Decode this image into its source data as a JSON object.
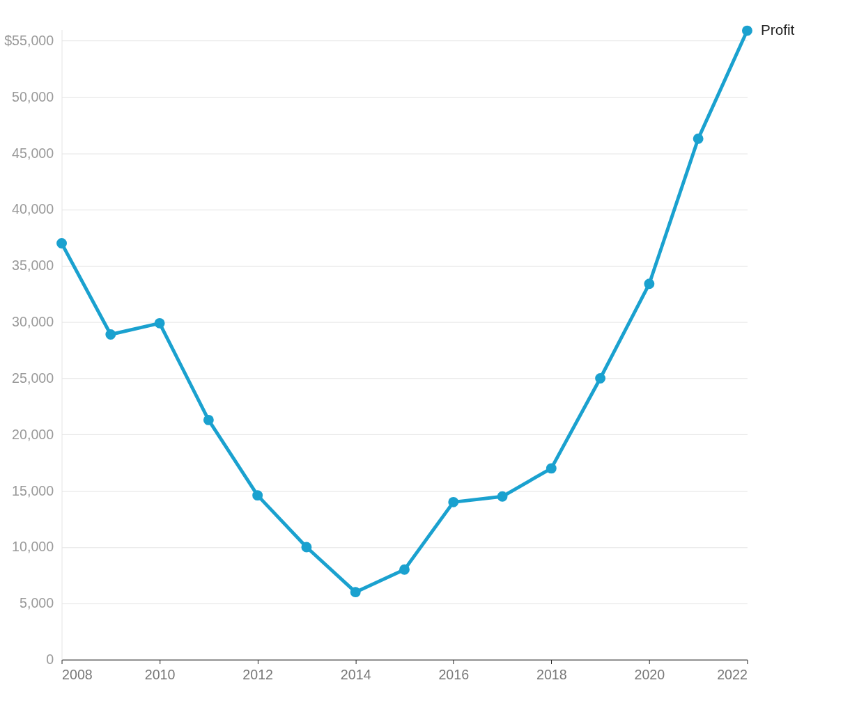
{
  "chart_data": {
    "type": "line",
    "x": [
      2008,
      2009,
      2010,
      2011,
      2012,
      2013,
      2014,
      2015,
      2016,
      2017,
      2018,
      2019,
      2020,
      2021,
      2022
    ],
    "series": [
      {
        "name": "Profit",
        "color": "#1aa1cf",
        "values": [
          37000,
          28900,
          29900,
          21300,
          14600,
          10000,
          6000,
          8000,
          14000,
          14500,
          17000,
          25000,
          33400,
          46300,
          55900
        ]
      }
    ],
    "xlim": [
      2008,
      2022
    ],
    "xticks": [
      2008,
      2010,
      2012,
      2014,
      2016,
      2018,
      2020,
      2022
    ],
    "ylim": [
      0,
      56000
    ],
    "yticks": [
      0,
      {
        "value": 5000,
        "label": "5,000"
      },
      {
        "value": 10000,
        "label": "10,000"
      },
      {
        "value": 15000,
        "label": "15,000"
      },
      {
        "value": 20000,
        "label": "20,000"
      },
      {
        "value": 25000,
        "label": "25,000"
      },
      {
        "value": 30000,
        "label": "30,000"
      },
      {
        "value": 35000,
        "label": "35,000"
      },
      {
        "value": 40000,
        "label": "40,000"
      },
      {
        "value": 45000,
        "label": "45,000"
      },
      {
        "value": 50000,
        "label": "50,000"
      },
      {
        "value": 55000,
        "label": "$55,000"
      }
    ],
    "grid": "y",
    "marker": "circle",
    "line_style": "solid",
    "legend": "top right"
  }
}
